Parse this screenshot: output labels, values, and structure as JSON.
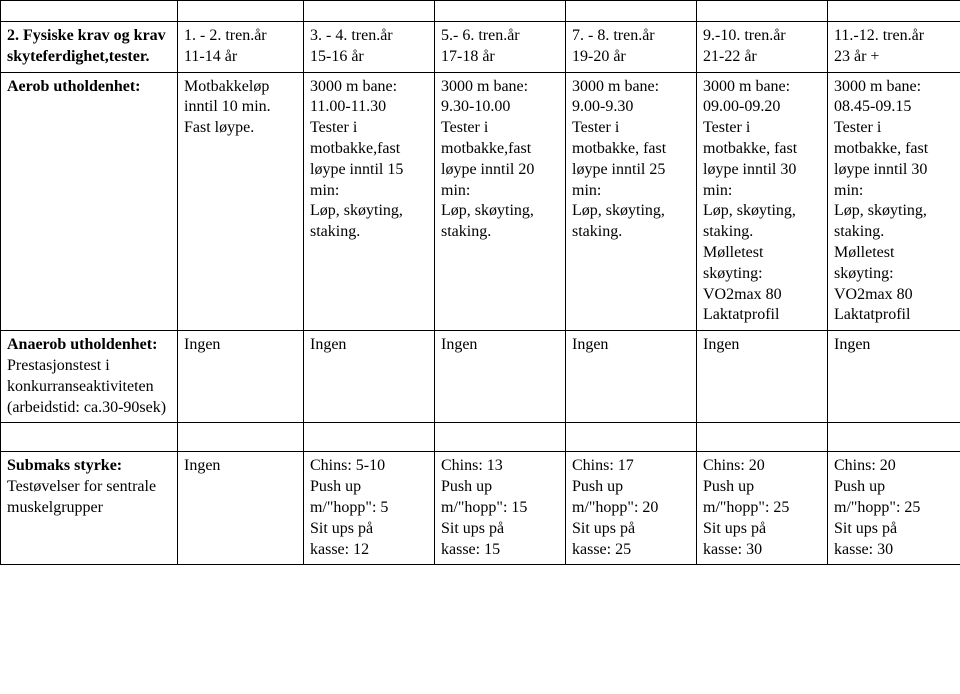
{
  "table1": {
    "header": {
      "c0": [
        "2. Fysiske krav og krav",
        "skyteferdighet,tester."
      ],
      "c1": [
        "1. - 2. tren.år",
        "11-14 år"
      ],
      "c2": [
        "3. - 4. tren.år",
        "15-16 år"
      ],
      "c3": [
        "5.- 6. tren.år",
        "17-18 år"
      ],
      "c4": [
        "7. - 8. tren.år",
        "19-20 år"
      ],
      "c5": [
        "9.-10. tren.år",
        "21-22 år"
      ],
      "c6": [
        "11.-12. tren.år",
        "23 år +"
      ]
    },
    "row_aerob": {
      "label": "Aerob utholdenhet:",
      "c1": [
        "Motbakkeløp",
        "inntil 10 min.",
        "Fast løype."
      ],
      "c2": [
        "3000 m bane:",
        "11.00-11.30",
        "Tester i",
        "motbakke,fast",
        "løype inntil 15",
        "min:",
        "Løp, skøyting,",
        "staking."
      ],
      "c3": [
        "3000 m bane:",
        "9.30-10.00",
        "Tester i",
        "motbakke,fast",
        "løype inntil 20",
        "min:",
        "Løp, skøyting,",
        "staking."
      ],
      "c4": [
        "3000 m bane:",
        "9.00-9.30",
        "Tester i",
        "motbakke, fast",
        "løype inntil 25",
        "min:",
        "Løp, skøyting,",
        "staking."
      ],
      "c5": [
        "3000 m bane:",
        "09.00-09.20",
        "Tester i",
        "motbakke, fast",
        "løype inntil 30",
        "min:",
        "Løp, skøyting,",
        "staking.",
        "Mølletest",
        "skøyting:",
        "VO2max 80",
        "Laktatprofil"
      ],
      "c6": [
        "3000 m bane:",
        "08.45-09.15",
        "Tester i",
        "motbakke, fast",
        "løype inntil 30",
        "min:",
        "Løp, skøyting,",
        "staking.",
        "Mølletest",
        "skøyting:",
        "VO2max 80",
        "Laktatprofil"
      ]
    },
    "row_anaerob": {
      "label": [
        "Anaerob utholdenhet:",
        "Prestasjonstest i",
        "konkurranseaktiviteten",
        "(arbeidstid: ca.30-90sek)"
      ],
      "c1": "Ingen",
      "c2": "Ingen",
      "c3": "Ingen",
      "c4": "Ingen",
      "c5": "Ingen",
      "c6": "Ingen"
    }
  },
  "table2": {
    "row_submaks": {
      "label": [
        "Submaks styrke:",
        "Testøvelser for sentrale",
        "muskelgrupper"
      ],
      "c1": "Ingen",
      "c2": [
        "Chins: 5-10",
        "Push up",
        "m/\"hopp\": 5",
        "Sit ups på",
        "kasse: 12"
      ],
      "c3": [
        "Chins: 13",
        "Push up",
        "m/\"hopp\": 15",
        "Sit ups på",
        "kasse: 15"
      ],
      "c4": [
        "Chins: 17",
        "Push up",
        "m/\"hopp\": 20",
        "Sit ups på",
        "kasse: 25"
      ],
      "c5": [
        "Chins: 20",
        "Push up",
        "m/\"hopp\": 25",
        "Sit ups på",
        "kasse: 30"
      ],
      "c6": [
        "Chins: 20",
        "Push up",
        "m/\"hopp\": 25",
        "Sit ups på",
        "kasse: 30"
      ]
    }
  }
}
